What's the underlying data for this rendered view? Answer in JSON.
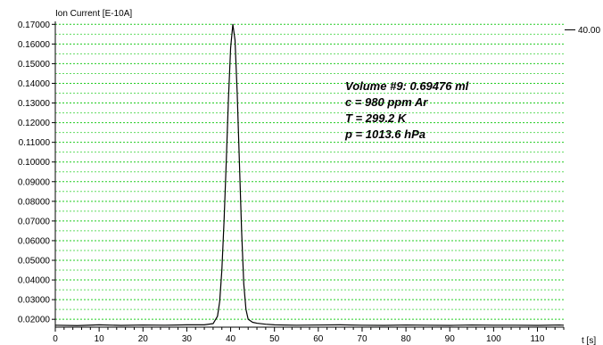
{
  "chart_data": {
    "type": "line",
    "ylabel": "Ion Current [E-10A]",
    "xlabel": "t [s]",
    "xlim": [
      0,
      116
    ],
    "ylim": [
      0.016,
      0.1715
    ],
    "x_ticks": [
      0,
      10,
      20,
      30,
      40,
      50,
      60,
      70,
      80,
      90,
      100,
      110
    ],
    "y_ticks": [
      "0.17000",
      "0.16000",
      "0.15000",
      "0.14000",
      "0.13000",
      "0.12000",
      "0.11000",
      "0.10000",
      "0.09000",
      "0.08000",
      "0.07000",
      "0.06000",
      "0.05000",
      "0.04000",
      "0.03000",
      "0.02000"
    ],
    "grid": true,
    "grid_color": "#22cc22",
    "line_color": "#000000",
    "right_marker": "40.00",
    "annotations": [
      "Volume #9: 0.69476 ml",
      "c = 980 ppm Ar",
      "T = 299.2 K",
      "p = 1013.6 hPa"
    ],
    "series": [
      {
        "x": [
          0,
          5,
          10,
          15,
          20,
          25,
          30,
          34,
          36,
          37,
          37.5,
          38,
          38.5,
          39,
          39.5,
          40,
          40.5,
          41,
          41.5,
          42,
          42.5,
          43,
          43.5,
          44,
          45,
          46,
          48,
          50,
          55,
          60,
          65,
          70,
          75,
          80,
          85,
          90,
          95,
          100,
          105,
          110,
          115,
          116
        ],
        "y": [
          0.017,
          0.0168,
          0.0172,
          0.0169,
          0.0171,
          0.017,
          0.0172,
          0.0172,
          0.0178,
          0.0215,
          0.029,
          0.045,
          0.07,
          0.1,
          0.132,
          0.158,
          0.17,
          0.162,
          0.135,
          0.1,
          0.065,
          0.038,
          0.025,
          0.02,
          0.0185,
          0.018,
          0.0175,
          0.0172,
          0.017,
          0.0171,
          0.0172,
          0.017,
          0.0169,
          0.0171,
          0.017,
          0.0169,
          0.0171,
          0.017,
          0.017,
          0.0169,
          0.0171,
          0.017
        ]
      }
    ]
  }
}
